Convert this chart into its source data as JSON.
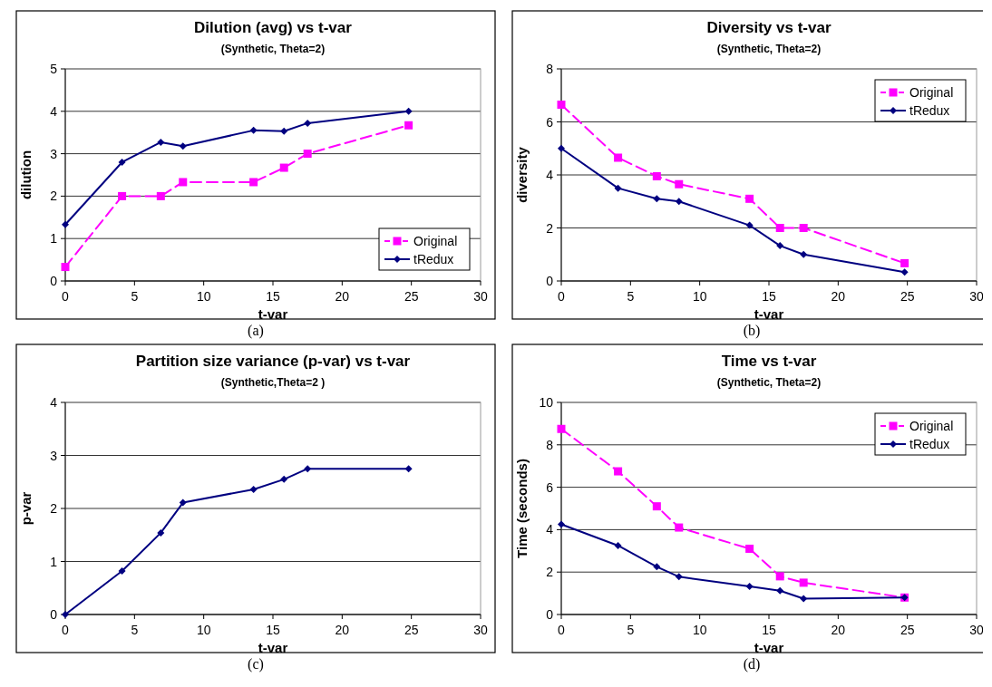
{
  "chart_data": [
    {
      "type": "line",
      "title": "Dilution (avg) vs t-var",
      "subtitle": "(Synthetic, Theta=2)",
      "xlabel": "t-var",
      "ylabel": "dilution",
      "x": [
        0,
        4.1,
        6.9,
        8.5,
        13.6,
        15.8,
        17.5,
        24.8
      ],
      "series": [
        {
          "name": "Original",
          "color": "#ff00ff",
          "marker": "square",
          "line_style": "dashed",
          "values": [
            0.33,
            2.0,
            2.0,
            2.33,
            2.33,
            2.67,
            3.0,
            3.67
          ]
        },
        {
          "name": "tRedux",
          "color": "#000080",
          "marker": "diamond",
          "line_style": "solid",
          "values": [
            1.33,
            2.8,
            3.27,
            3.18,
            3.55,
            3.53,
            3.72,
            4.0
          ]
        }
      ],
      "xlim": [
        0,
        30
      ],
      "xticks": [
        0,
        5,
        10,
        15,
        20,
        25,
        30
      ],
      "ylim": [
        0,
        5
      ],
      "yticks": [
        0,
        1,
        2,
        3,
        4,
        5
      ],
      "grid": "y",
      "legend": "bottom right",
      "annotations": [
        "(a)"
      ]
    },
    {
      "type": "line",
      "title": "Diversity vs t-var",
      "subtitle": "(Synthetic, Theta=2)",
      "xlabel": "t-var",
      "ylabel": "diversity",
      "x": [
        0,
        4.1,
        6.9,
        8.5,
        13.6,
        15.8,
        17.5,
        24.8
      ],
      "series": [
        {
          "name": "Original",
          "color": "#ff00ff",
          "marker": "square",
          "line_style": "dashed",
          "values": [
            6.65,
            4.65,
            3.95,
            3.65,
            3.1,
            2.0,
            2.0,
            0.67
          ]
        },
        {
          "name": "tRedux",
          "color": "#000080",
          "marker": "diamond",
          "line_style": "solid",
          "values": [
            5.0,
            3.5,
            3.1,
            3.0,
            2.1,
            1.33,
            1.0,
            0.33
          ]
        }
      ],
      "xlim": [
        0,
        30
      ],
      "xticks": [
        0,
        5,
        10,
        15,
        20,
        25,
        30
      ],
      "ylim": [
        0,
        8
      ],
      "yticks": [
        0,
        2,
        4,
        6,
        8
      ],
      "grid": "y",
      "legend": "top right",
      "annotations": [
        "(b)"
      ]
    },
    {
      "type": "line",
      "title": "Partition size variance (p-var) vs t-var",
      "subtitle": "(Synthetic,Theta=2 )",
      "xlabel": "t-var",
      "ylabel": "p-var",
      "x": [
        0,
        4.1,
        6.9,
        8.5,
        13.6,
        15.8,
        17.5,
        24.8
      ],
      "series": [
        {
          "color": "#000080",
          "marker": "diamond",
          "line_style": "solid",
          "values": [
            0,
            0.82,
            1.54,
            2.11,
            2.36,
            2.55,
            2.75,
            2.75
          ]
        }
      ],
      "xlim": [
        0,
        30
      ],
      "xticks": [
        0,
        5,
        10,
        15,
        20,
        25,
        30
      ],
      "ylim": [
        0,
        4
      ],
      "yticks": [
        0,
        1,
        2,
        3,
        4
      ],
      "grid": "y",
      "annotations": [
        "(c)"
      ]
    },
    {
      "type": "line",
      "title": "Time vs t-var",
      "subtitle": "(Synthetic, Theta=2)",
      "xlabel": "t-var",
      "ylabel": "Time (seconds)",
      "x": [
        0,
        4.1,
        6.9,
        8.5,
        13.6,
        15.8,
        17.5,
        24.8
      ],
      "series": [
        {
          "name": "Original",
          "color": "#ff00ff",
          "marker": "square",
          "line_style": "dashed",
          "values": [
            8.75,
            6.75,
            5.1,
            4.1,
            3.1,
            1.8,
            1.5,
            0.8
          ]
        },
        {
          "name": "tRedux",
          "color": "#000080",
          "marker": "diamond",
          "line_style": "solid",
          "values": [
            4.25,
            3.25,
            2.25,
            1.78,
            1.32,
            1.12,
            0.75,
            0.8
          ]
        }
      ],
      "xlim": [
        0,
        30
      ],
      "xticks": [
        0,
        5,
        10,
        15,
        20,
        25,
        30
      ],
      "ylim": [
        0,
        10
      ],
      "yticks": [
        0,
        2,
        4,
        6,
        8,
        10
      ],
      "grid": "y",
      "legend": "top right",
      "annotations": [
        "(d)"
      ]
    }
  ]
}
